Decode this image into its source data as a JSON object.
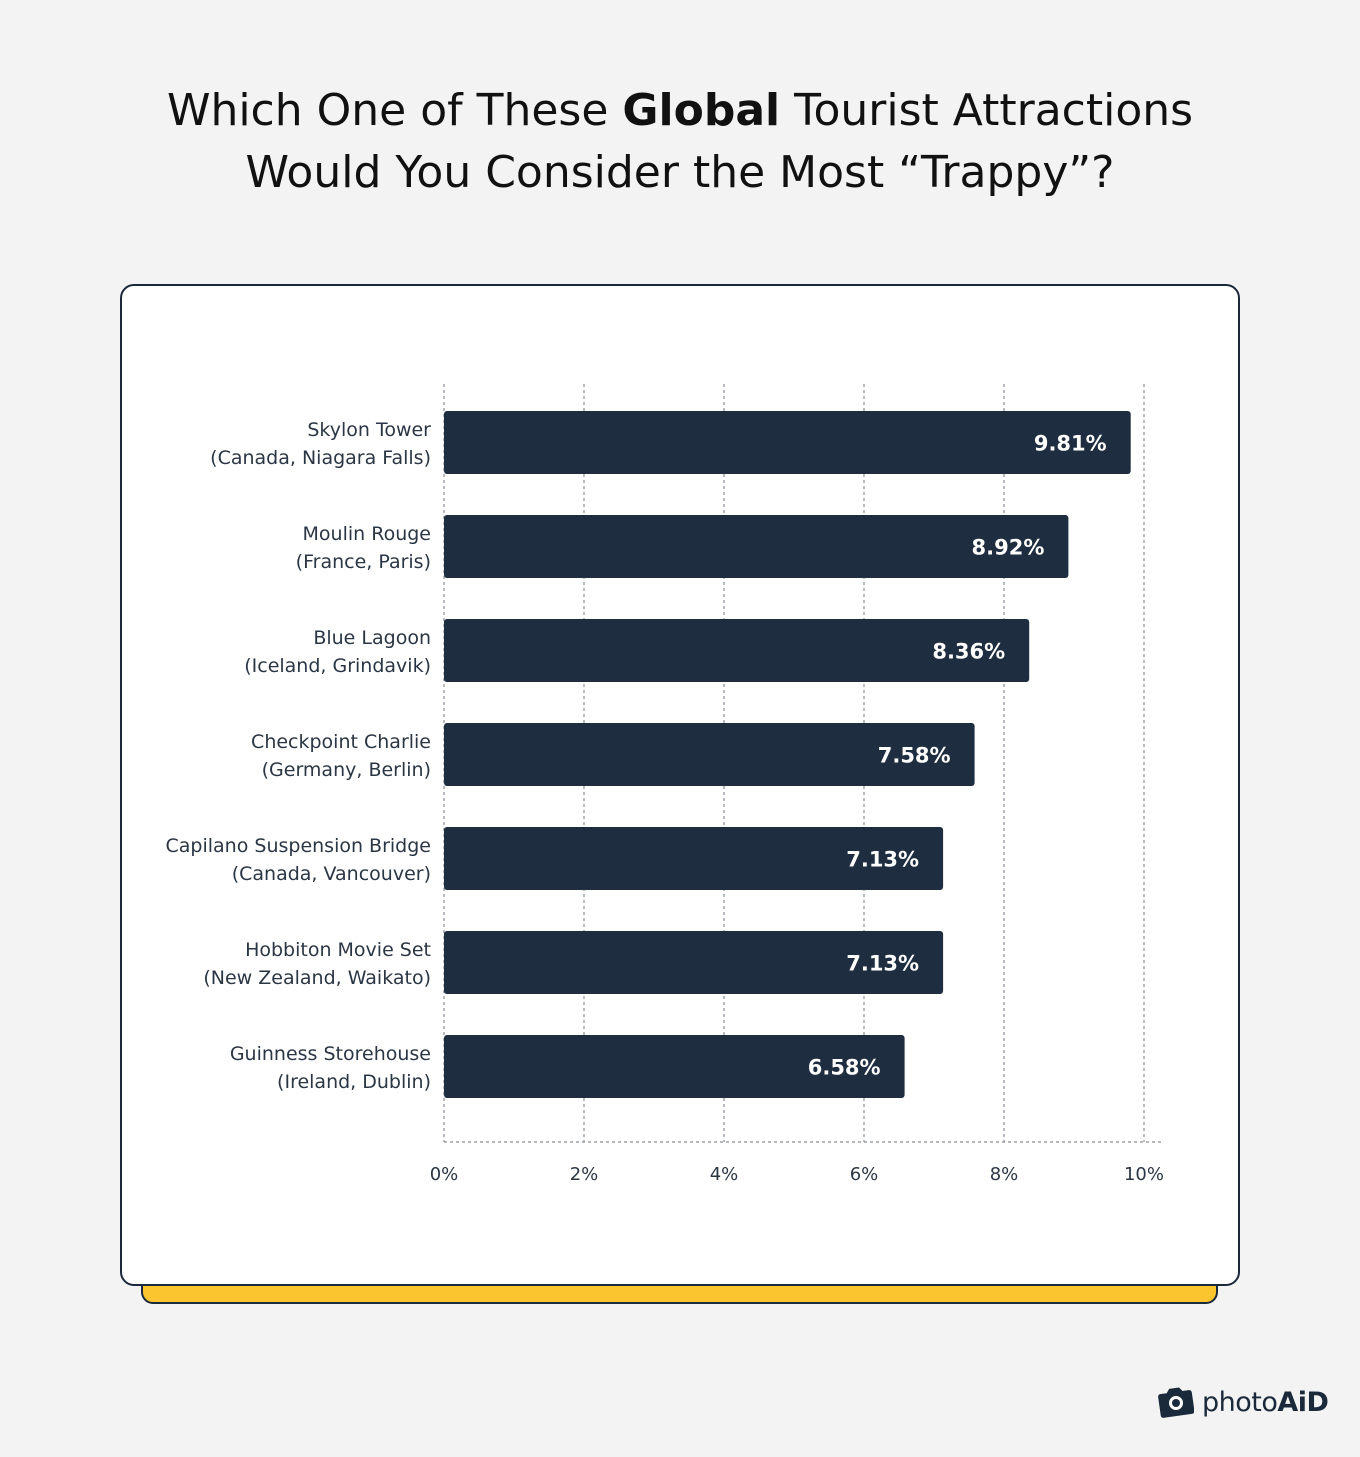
{
  "title": {
    "line1_pre": "Which One of These ",
    "line1_bold": "Global",
    "line1_post": " Tourist Attractions",
    "line2": "Would You Consider the Most “Trappy”?"
  },
  "logo": {
    "icon": "camera-icon",
    "text_a": "photo",
    "text_b": "AiD"
  },
  "colors": {
    "bar": "#1e2d40",
    "accent": "#fbc530",
    "grid": "#8a8f96",
    "background": "#f3f3f3"
  },
  "chart_data": {
    "type": "bar",
    "orientation": "horizontal",
    "categories": [
      [
        "Skylon Tower",
        "(Canada, Niagara Falls)"
      ],
      [
        "Moulin Rouge",
        "(France, Paris)"
      ],
      [
        "Blue Lagoon",
        "(Iceland, Grindavik)"
      ],
      [
        "Checkpoint Charlie",
        "(Germany, Berlin)"
      ],
      [
        "Capilano Suspension Bridge",
        "(Canada, Vancouver)"
      ],
      [
        "Hobbiton Movie Set",
        "(New Zealand, Waikato)"
      ],
      [
        "Guinness Storehouse",
        "(Ireland, Dublin)"
      ]
    ],
    "values": [
      9.81,
      8.92,
      8.36,
      7.58,
      7.13,
      7.13,
      6.58
    ],
    "value_labels": [
      "9.81%",
      "8.92%",
      "8.36%",
      "7.58%",
      "7.13%",
      "7.13%",
      "6.58%"
    ],
    "xlim": [
      0,
      10
    ],
    "xticks": [
      0,
      2,
      4,
      6,
      8,
      10
    ],
    "xtick_labels": [
      "0%",
      "2%",
      "4%",
      "6%",
      "8%",
      "10%"
    ],
    "grid": true,
    "legend": "none"
  }
}
